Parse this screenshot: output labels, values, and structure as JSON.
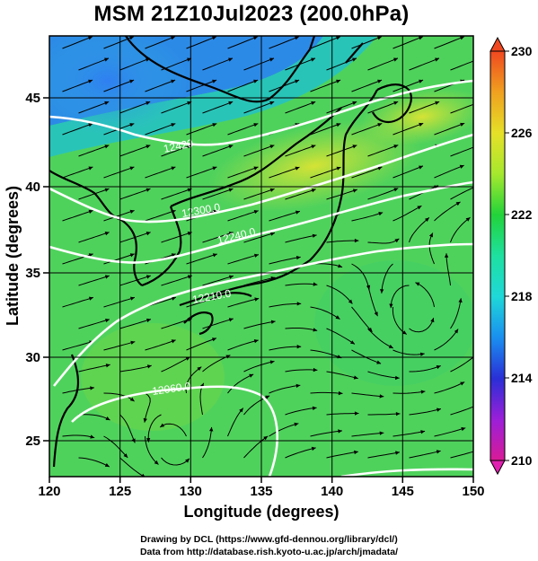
{
  "title": "MSM 21Z10Jul2023 (200.0hPa)",
  "credits": {
    "line1": "Drawing by DCL (https://www.gfd-dennou.org/library/dcl/)",
    "line2": "Data from http://database.rish.kyoto-u.ac.jp/arch/jmadata/"
  },
  "axes": {
    "xlabel": "Longitude (degrees)",
    "ylabel": "Latitude  (degrees)",
    "xticks": [
      120,
      125,
      130,
      135,
      140,
      145,
      150
    ],
    "yticks": [
      25,
      30,
      35,
      40,
      45
    ],
    "xlim": [
      120,
      150
    ],
    "ylim": [
      22.4,
      47.6
    ]
  },
  "colorbar": {
    "ticks": [
      230,
      226,
      222,
      218,
      214,
      210
    ],
    "range": [
      210,
      230
    ],
    "colors": [
      "#d81b97",
      "#9b1fd8",
      "#2a2fd6",
      "#1a8ff0",
      "#1fd8d8",
      "#1ee0a0",
      "#22d33a",
      "#a6e82e",
      "#e6e028",
      "#f0a020",
      "#f04820"
    ]
  },
  "contours": {
    "color": "#ffffff",
    "labels": [
      "12420",
      "12300.0",
      "12240.0",
      "12210.0",
      "12060.0"
    ]
  },
  "map": {
    "streamline_color": "#000000",
    "coastline_color": "#000000",
    "gridline_color": "#000000",
    "field_low_color": "#2a7bf0",
    "field_mid_color": "#4fd25c",
    "field_high_color": "#e6e030"
  }
}
